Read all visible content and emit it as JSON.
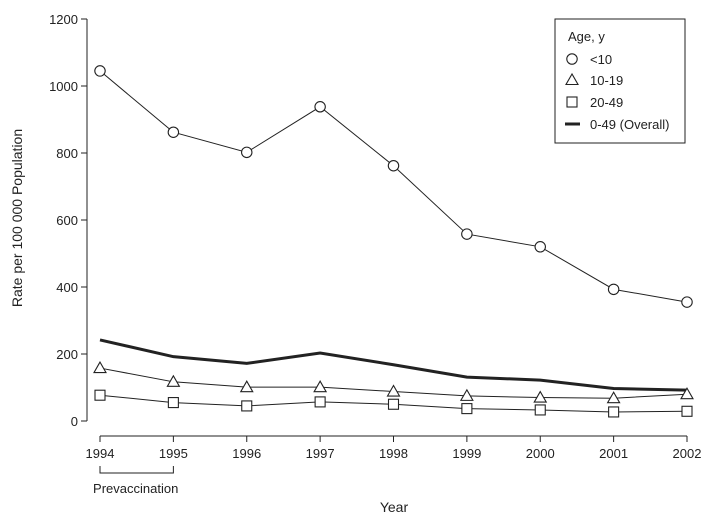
{
  "chart_data": {
    "type": "line",
    "title": "",
    "xlabel": "Year",
    "ylabel": "Rate per 100 000 Population",
    "x": [
      1994,
      1995,
      1996,
      1997,
      1998,
      1999,
      2000,
      2001,
      2002
    ],
    "x_tick_labels": [
      "1994",
      "1995",
      "1996",
      "1997",
      "1998",
      "1999",
      "2000",
      "2001",
      "2002"
    ],
    "ylim": [
      0,
      1200
    ],
    "y_ticks": [
      0,
      200,
      400,
      600,
      800,
      1000,
      1200
    ],
    "y_tick_labels": [
      "0",
      "200",
      "400",
      "600",
      "800",
      "1000",
      "1200"
    ],
    "grid": false,
    "legend": {
      "title": "Age, y",
      "placement": "top-right"
    },
    "series": [
      {
        "name": "<10",
        "marker": "circle",
        "values": [
          1045,
          862,
          802,
          938,
          762,
          558,
          520,
          393,
          355
        ]
      },
      {
        "name": "10-19",
        "marker": "triangle",
        "values": [
          158,
          117,
          101,
          101,
          88,
          75,
          70,
          68,
          80
        ]
      },
      {
        "name": "20-49",
        "marker": "square",
        "values": [
          77,
          55,
          45,
          57,
          50,
          37,
          33,
          27,
          29
        ]
      },
      {
        "name": "0-49 (Overall)",
        "marker": "thick-line",
        "values": [
          242,
          192,
          172,
          203,
          168,
          131,
          122,
          97,
          92
        ]
      }
    ],
    "annotations": [
      {
        "text": "Prevaccination",
        "span": [
          1994,
          1995
        ]
      }
    ]
  }
}
